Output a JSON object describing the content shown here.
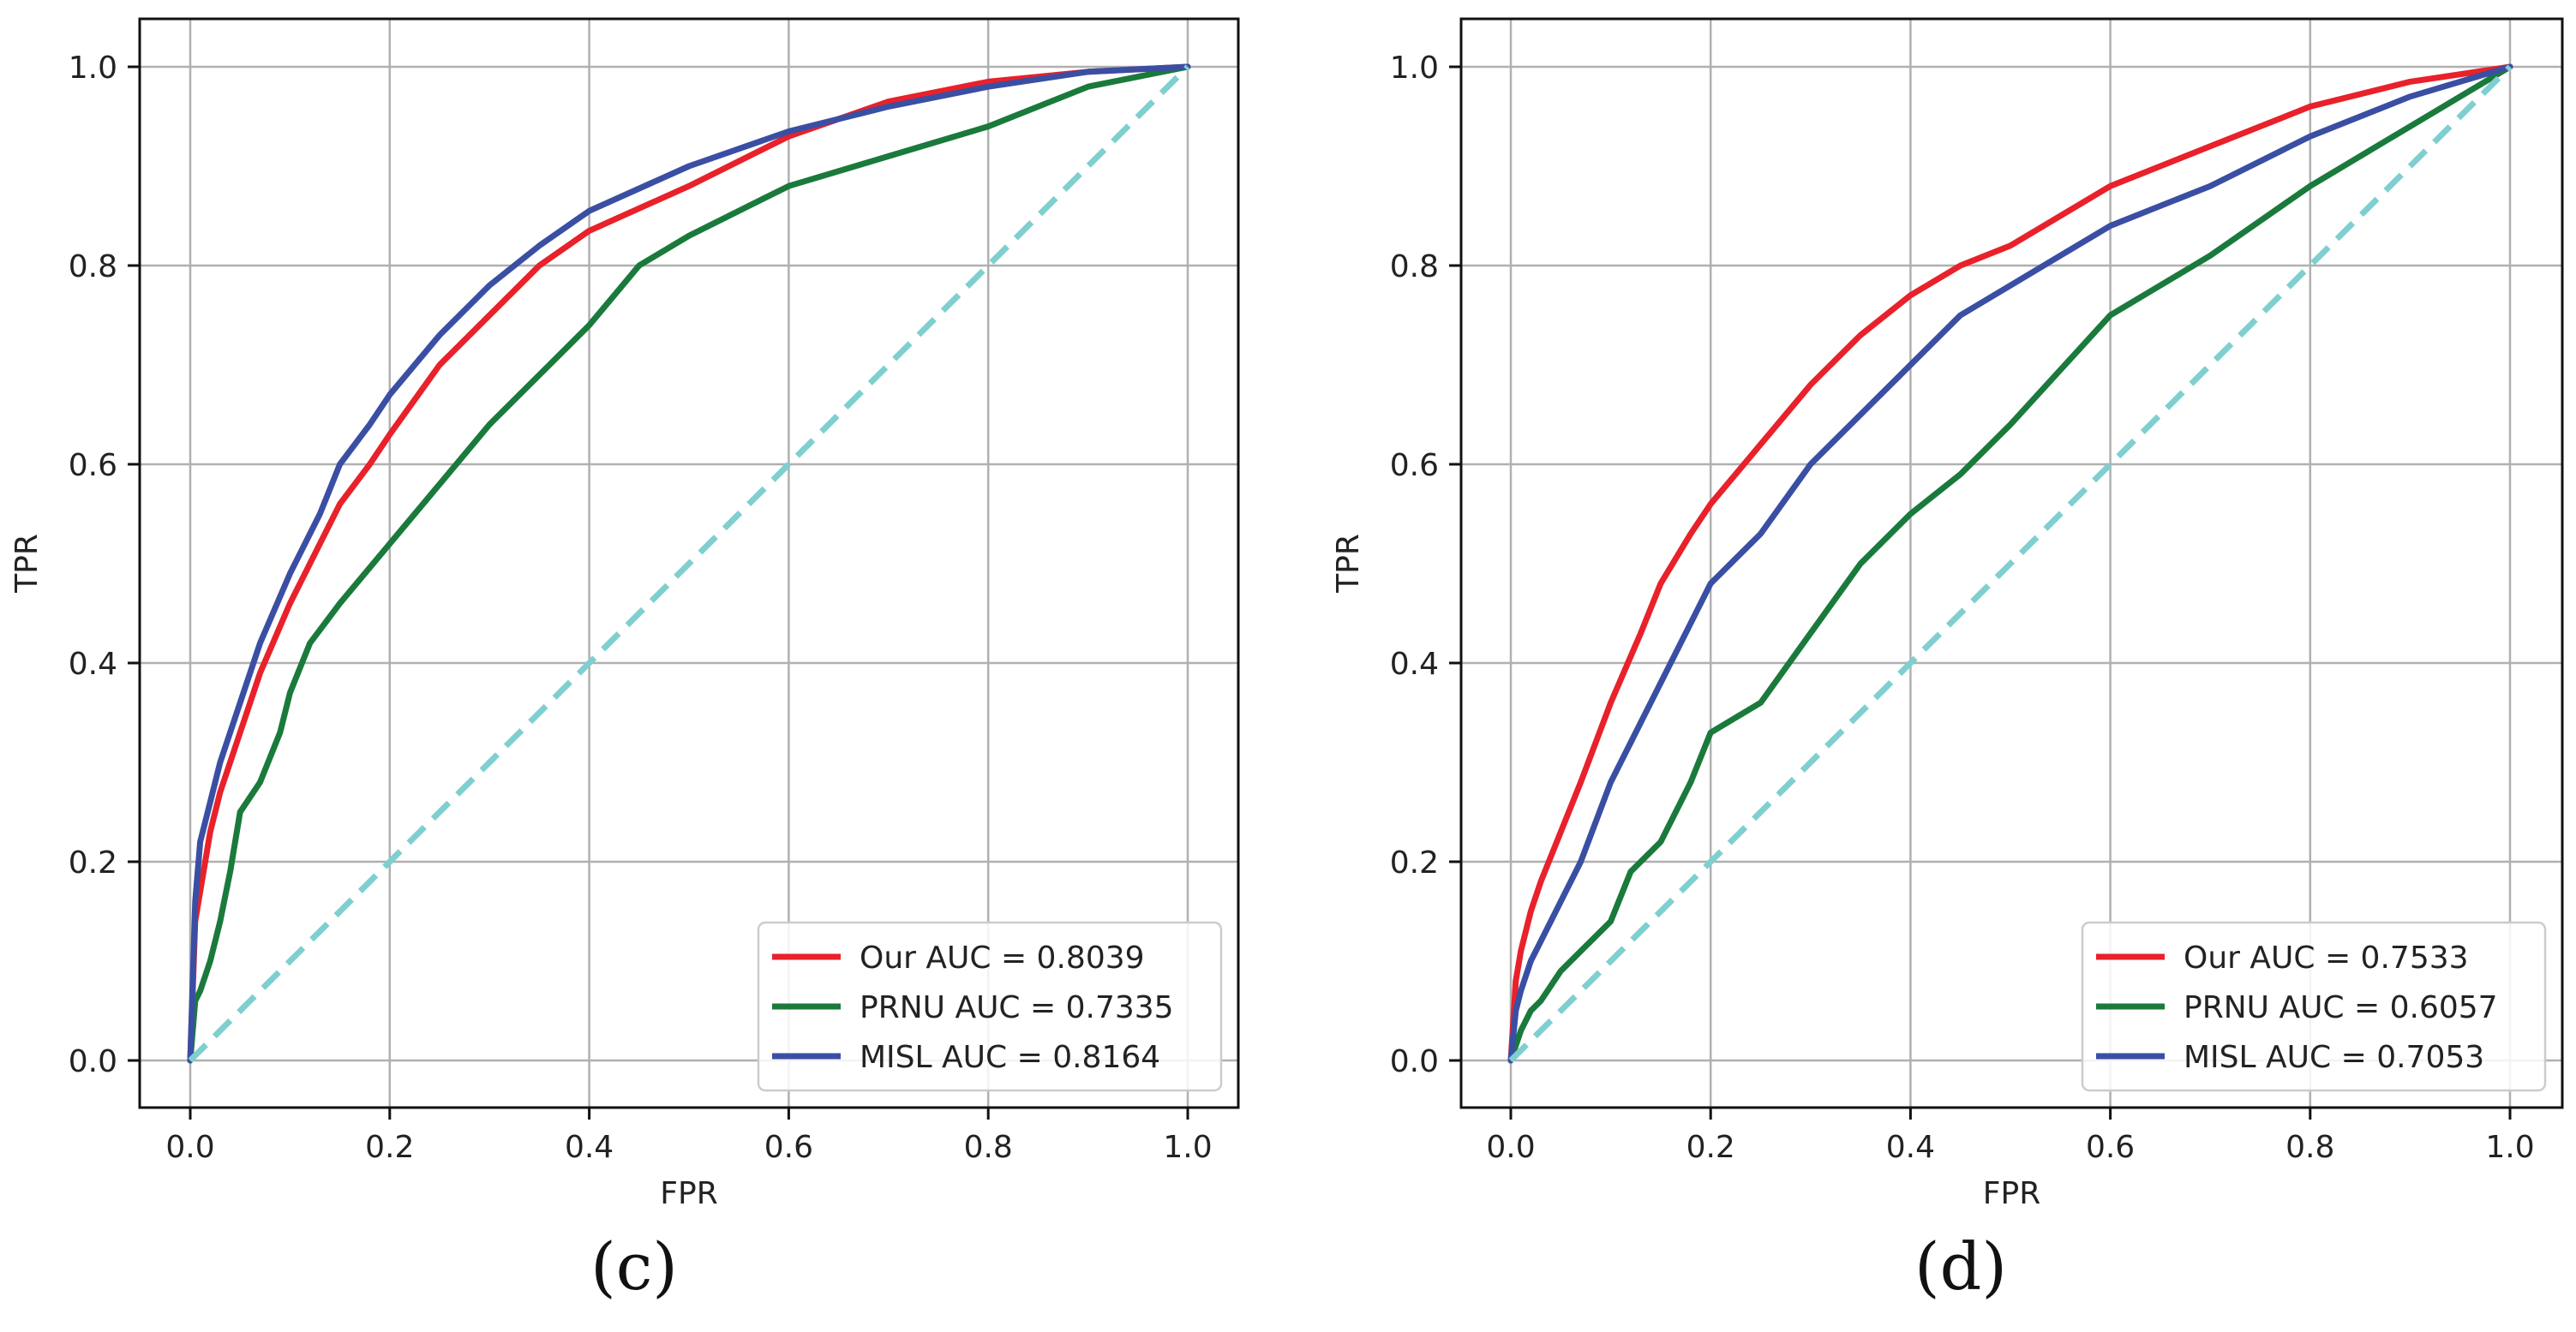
{
  "chart_data": [
    {
      "type": "line",
      "panel_caption": "(c)",
      "xlabel": "FPR",
      "ylabel": "TPR",
      "xlim": [
        0.0,
        1.0
      ],
      "ylim": [
        0.0,
        1.0
      ],
      "xticks": [
        "0.0",
        "0.2",
        "0.4",
        "0.6",
        "0.8",
        "1.0"
      ],
      "yticks": [
        "0.0",
        "0.2",
        "0.4",
        "0.6",
        "0.8",
        "1.0"
      ],
      "grid": true,
      "legend_position": "lower-right",
      "series": [
        {
          "name": "Our AUC = 0.8039",
          "color": "#e8212a",
          "style": "solid",
          "x": [
            0,
            0.005,
            0.01,
            0.02,
            0.03,
            0.05,
            0.07,
            0.1,
            0.13,
            0.15,
            0.18,
            0.2,
            0.25,
            0.3,
            0.35,
            0.4,
            0.5,
            0.6,
            0.7,
            0.8,
            0.9,
            1.0
          ],
          "y": [
            0,
            0.14,
            0.17,
            0.23,
            0.27,
            0.33,
            0.39,
            0.46,
            0.52,
            0.56,
            0.6,
            0.63,
            0.7,
            0.75,
            0.8,
            0.835,
            0.88,
            0.93,
            0.965,
            0.985,
            0.995,
            1.0
          ]
        },
        {
          "name": "PRNU AUC = 0.7335",
          "color": "#1a7a3c",
          "style": "solid",
          "x": [
            0,
            0.005,
            0.01,
            0.02,
            0.03,
            0.04,
            0.05,
            0.07,
            0.09,
            0.1,
            0.12,
            0.15,
            0.2,
            0.25,
            0.3,
            0.35,
            0.4,
            0.45,
            0.5,
            0.6,
            0.7,
            0.8,
            0.9,
            1.0
          ],
          "y": [
            0,
            0.06,
            0.07,
            0.1,
            0.14,
            0.19,
            0.25,
            0.28,
            0.33,
            0.37,
            0.42,
            0.46,
            0.52,
            0.58,
            0.64,
            0.69,
            0.74,
            0.8,
            0.83,
            0.88,
            0.91,
            0.94,
            0.98,
            1.0
          ]
        },
        {
          "name": "MISL AUC = 0.8164",
          "color": "#3a4fa3",
          "style": "solid",
          "x": [
            0,
            0.005,
            0.01,
            0.02,
            0.03,
            0.05,
            0.07,
            0.1,
            0.13,
            0.15,
            0.18,
            0.2,
            0.25,
            0.3,
            0.35,
            0.4,
            0.5,
            0.6,
            0.7,
            0.8,
            0.9,
            1.0
          ],
          "y": [
            0,
            0.16,
            0.22,
            0.26,
            0.3,
            0.36,
            0.42,
            0.49,
            0.55,
            0.6,
            0.64,
            0.67,
            0.73,
            0.78,
            0.82,
            0.855,
            0.9,
            0.935,
            0.96,
            0.98,
            0.995,
            1.0
          ]
        },
        {
          "name": "",
          "color": "#7fcfd0",
          "style": "dashed",
          "x": [
            0,
            1
          ],
          "y": [
            0,
            1
          ]
        }
      ]
    },
    {
      "type": "line",
      "panel_caption": "(d)",
      "xlabel": "FPR",
      "ylabel": "TPR",
      "xlim": [
        0.0,
        1.0
      ],
      "ylim": [
        0.0,
        1.0
      ],
      "xticks": [
        "0.0",
        "0.2",
        "0.4",
        "0.6",
        "0.8",
        "1.0"
      ],
      "yticks": [
        "0.0",
        "0.2",
        "0.4",
        "0.6",
        "0.8",
        "1.0"
      ],
      "grid": true,
      "legend_position": "lower-right",
      "series": [
        {
          "name": "Our AUC = 0.7533",
          "color": "#e8212a",
          "style": "solid",
          "x": [
            0,
            0.005,
            0.01,
            0.02,
            0.03,
            0.05,
            0.07,
            0.1,
            0.13,
            0.15,
            0.18,
            0.2,
            0.25,
            0.3,
            0.35,
            0.4,
            0.45,
            0.5,
            0.6,
            0.7,
            0.8,
            0.9,
            1.0
          ],
          "y": [
            0,
            0.08,
            0.11,
            0.15,
            0.18,
            0.23,
            0.28,
            0.36,
            0.43,
            0.48,
            0.53,
            0.56,
            0.62,
            0.68,
            0.73,
            0.77,
            0.8,
            0.82,
            0.88,
            0.92,
            0.96,
            0.985,
            1.0
          ]
        },
        {
          "name": "PRNU AUC = 0.6057",
          "color": "#1a7a3c",
          "style": "solid",
          "x": [
            0,
            0.01,
            0.02,
            0.03,
            0.05,
            0.07,
            0.1,
            0.12,
            0.15,
            0.18,
            0.2,
            0.25,
            0.3,
            0.35,
            0.4,
            0.45,
            0.5,
            0.6,
            0.7,
            0.8,
            0.9,
            1.0
          ],
          "y": [
            0,
            0.03,
            0.05,
            0.06,
            0.09,
            0.11,
            0.14,
            0.19,
            0.22,
            0.28,
            0.33,
            0.36,
            0.43,
            0.5,
            0.55,
            0.59,
            0.64,
            0.75,
            0.81,
            0.88,
            0.94,
            1.0
          ]
        },
        {
          "name": "MISL AUC = 0.7053",
          "color": "#3a4fa3",
          "style": "solid",
          "x": [
            0,
            0.005,
            0.01,
            0.02,
            0.03,
            0.05,
            0.07,
            0.1,
            0.13,
            0.15,
            0.18,
            0.2,
            0.25,
            0.3,
            0.35,
            0.4,
            0.45,
            0.5,
            0.6,
            0.7,
            0.8,
            0.9,
            1.0
          ],
          "y": [
            0,
            0.05,
            0.07,
            0.1,
            0.12,
            0.16,
            0.2,
            0.28,
            0.34,
            0.38,
            0.44,
            0.48,
            0.53,
            0.6,
            0.65,
            0.7,
            0.75,
            0.78,
            0.84,
            0.88,
            0.93,
            0.97,
            1.0
          ]
        },
        {
          "name": "",
          "color": "#7fcfd0",
          "style": "dashed",
          "x": [
            0,
            1
          ],
          "y": [
            0,
            1
          ]
        }
      ]
    }
  ]
}
